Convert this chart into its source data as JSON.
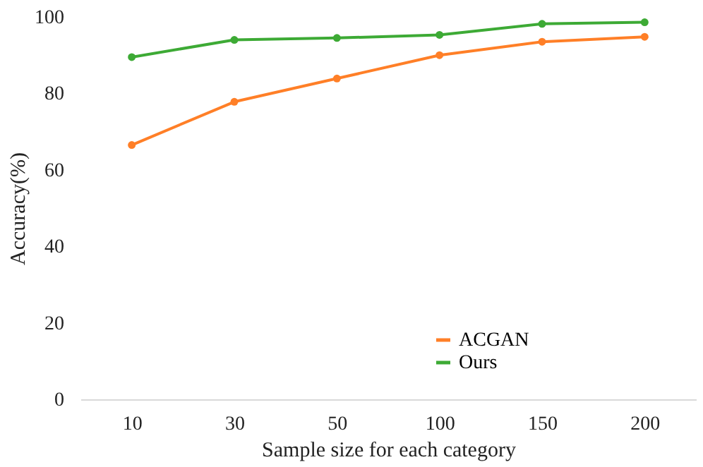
{
  "chart_data": {
    "type": "line",
    "xlabel": "Sample size for each category",
    "ylabel": "Accuracy(%)",
    "categories": [
      "10",
      "30",
      "50",
      "100",
      "150",
      "200"
    ],
    "series": [
      {
        "name": "ACGAN",
        "color": "#ff7f27",
        "values": [
          66.5,
          77.8,
          83.9,
          90,
          93.5,
          94.8
        ]
      },
      {
        "name": "Ours",
        "color": "#3daa35",
        "values": [
          89.5,
          94,
          94.5,
          95.3,
          98.2,
          98.6
        ]
      }
    ],
    "ylim": [
      0,
      100
    ],
    "yticks": [
      0,
      20,
      40,
      60,
      80,
      100
    ],
    "grid": false,
    "legend": "bottom right",
    "marker": "circle",
    "line_style": "solid"
  }
}
